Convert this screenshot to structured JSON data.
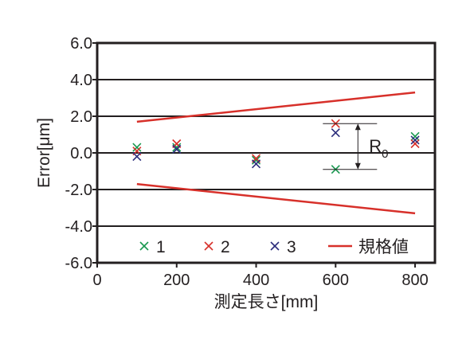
{
  "chart_data": {
    "type": "scatter",
    "title": "",
    "xlabel": "測定長さ[mm]",
    "ylabel": "Error[μm]",
    "xlim": [
      0,
      850
    ],
    "ylim": [
      -6.0,
      6.0
    ],
    "x_ticks": [
      0,
      200,
      400,
      600,
      800
    ],
    "x_tick_labels": [
      "0",
      "200",
      "400",
      "600",
      "800"
    ],
    "y_ticks": [
      6.0,
      4.0,
      2.0,
      0.0,
      -2.0,
      -4.0,
      -6.0
    ],
    "y_tick_labels": [
      "6.0",
      "4.0",
      "2.0",
      "0.0",
      "-2.0",
      "-4.0",
      "-6.0"
    ],
    "grid": "horizontal",
    "legend_position": "bottom",
    "series": [
      {
        "name": "1",
        "color": "#1a9850",
        "marker": "x",
        "points": [
          [
            100,
            0.3
          ],
          [
            200,
            0.3
          ],
          [
            400,
            -0.4
          ],
          [
            600,
            -0.9
          ],
          [
            800,
            0.9
          ]
        ]
      },
      {
        "name": "2",
        "color": "#d7302a",
        "marker": "x",
        "points": [
          [
            100,
            0.1
          ],
          [
            200,
            0.5
          ],
          [
            400,
            -0.3
          ],
          [
            600,
            1.6
          ],
          [
            800,
            0.5
          ]
        ]
      },
      {
        "name": "3",
        "color": "#2c2d7c",
        "marker": "x",
        "points": [
          [
            100,
            -0.2
          ],
          [
            200,
            0.2
          ],
          [
            400,
            -0.6
          ],
          [
            600,
            1.1
          ],
          [
            800,
            0.7
          ]
        ]
      },
      {
        "name": "規格値",
        "color": "#d7302a",
        "marker": "line",
        "lines": [
          [
            [
              100,
              1.7
            ],
            [
              800,
              3.3
            ]
          ],
          [
            [
              100,
              -1.7
            ],
            [
              800,
              -3.3
            ]
          ]
        ]
      }
    ],
    "annotation": {
      "label": "R",
      "subscript": "0",
      "x": 600,
      "upper": 1.6,
      "lower": -0.9
    }
  }
}
